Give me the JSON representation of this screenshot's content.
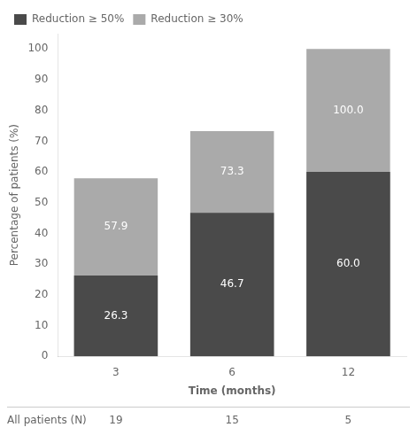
{
  "chart_data": {
    "type": "bar",
    "categories": [
      "3",
      "6",
      "12"
    ],
    "series": [
      {
        "name": "Reduction ≥ 30%",
        "color": "#aaaaaa",
        "values": [
          57.9,
          73.3,
          100.0
        ],
        "value_labels": [
          "57.9",
          "73.3",
          "100.0"
        ]
      },
      {
        "name": "Reduction ≥ 50%",
        "color": "#4a4a4a",
        "values": [
          26.3,
          46.7,
          60.0
        ],
        "value_labels": [
          "26.3",
          "46.7",
          "60.0"
        ]
      }
    ],
    "xlabel": "Time (months)",
    "ylabel": "Percentage of patients (%)",
    "ylim": [
      0,
      105
    ],
    "yticks": [
      0,
      10,
      20,
      30,
      40,
      50,
      60,
      70,
      80,
      90,
      100
    ],
    "grid": false,
    "legend": "upper left",
    "data_labels": true,
    "patient_label": "All patients (N)",
    "patient_counts": [
      19,
      15,
      5
    ]
  }
}
